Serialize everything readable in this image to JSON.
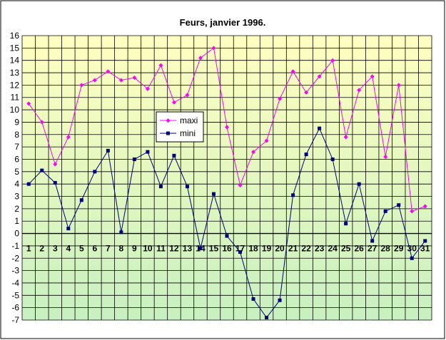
{
  "chart_data": {
    "type": "line",
    "title": "Feurs, janvier 1996.",
    "xlabel": "",
    "ylabel": "",
    "categories": [
      "1",
      "2",
      "3",
      "4",
      "5",
      "6",
      "7",
      "8",
      "9",
      "10",
      "11",
      "12",
      "13",
      "14",
      "15",
      "16",
      "17",
      "18",
      "19",
      "20",
      "21",
      "22",
      "23",
      "24",
      "25",
      "26",
      "27",
      "28",
      "29",
      "30",
      "31"
    ],
    "ylim": [
      -7,
      16
    ],
    "yticks": [
      "16",
      "15",
      "14",
      "13",
      "12",
      "11",
      "10",
      "9",
      "8",
      "7",
      "6",
      "5",
      "4",
      "3",
      "2",
      "1",
      "0",
      "-1",
      "-2",
      "-3",
      "-4",
      "-5",
      "-6",
      "-7"
    ],
    "grid": true,
    "legend_position": "center",
    "series": [
      {
        "name": "maxi",
        "color": "#ff00ff",
        "marker": "diamond",
        "values": [
          10.5,
          9.0,
          5.6,
          7.8,
          12.0,
          12.4,
          13.1,
          12.4,
          12.6,
          11.7,
          13.6,
          10.6,
          11.2,
          14.2,
          15.0,
          8.6,
          3.9,
          6.6,
          7.5,
          10.9,
          13.1,
          11.4,
          12.7,
          14.0,
          7.8,
          11.6,
          12.7,
          6.2,
          12.0,
          1.8,
          2.2
        ]
      },
      {
        "name": "mini",
        "color": "#000080",
        "marker": "square",
        "values": [
          4.0,
          5.1,
          4.1,
          0.4,
          2.7,
          5.0,
          6.7,
          0.1,
          6.0,
          6.6,
          3.8,
          6.3,
          3.8,
          -1.2,
          3.2,
          -0.2,
          -1.5,
          -5.3,
          -6.8,
          -5.4,
          3.1,
          6.4,
          8.5,
          6.0,
          0.8,
          4.0,
          -0.6,
          1.8,
          2.3,
          -2.0,
          -0.6
        ]
      }
    ],
    "colors": {
      "plot_top": "#ffffc0",
      "plot_bottom": "#c8f0c0",
      "grid": "#000000",
      "background": "#ffffff"
    }
  }
}
